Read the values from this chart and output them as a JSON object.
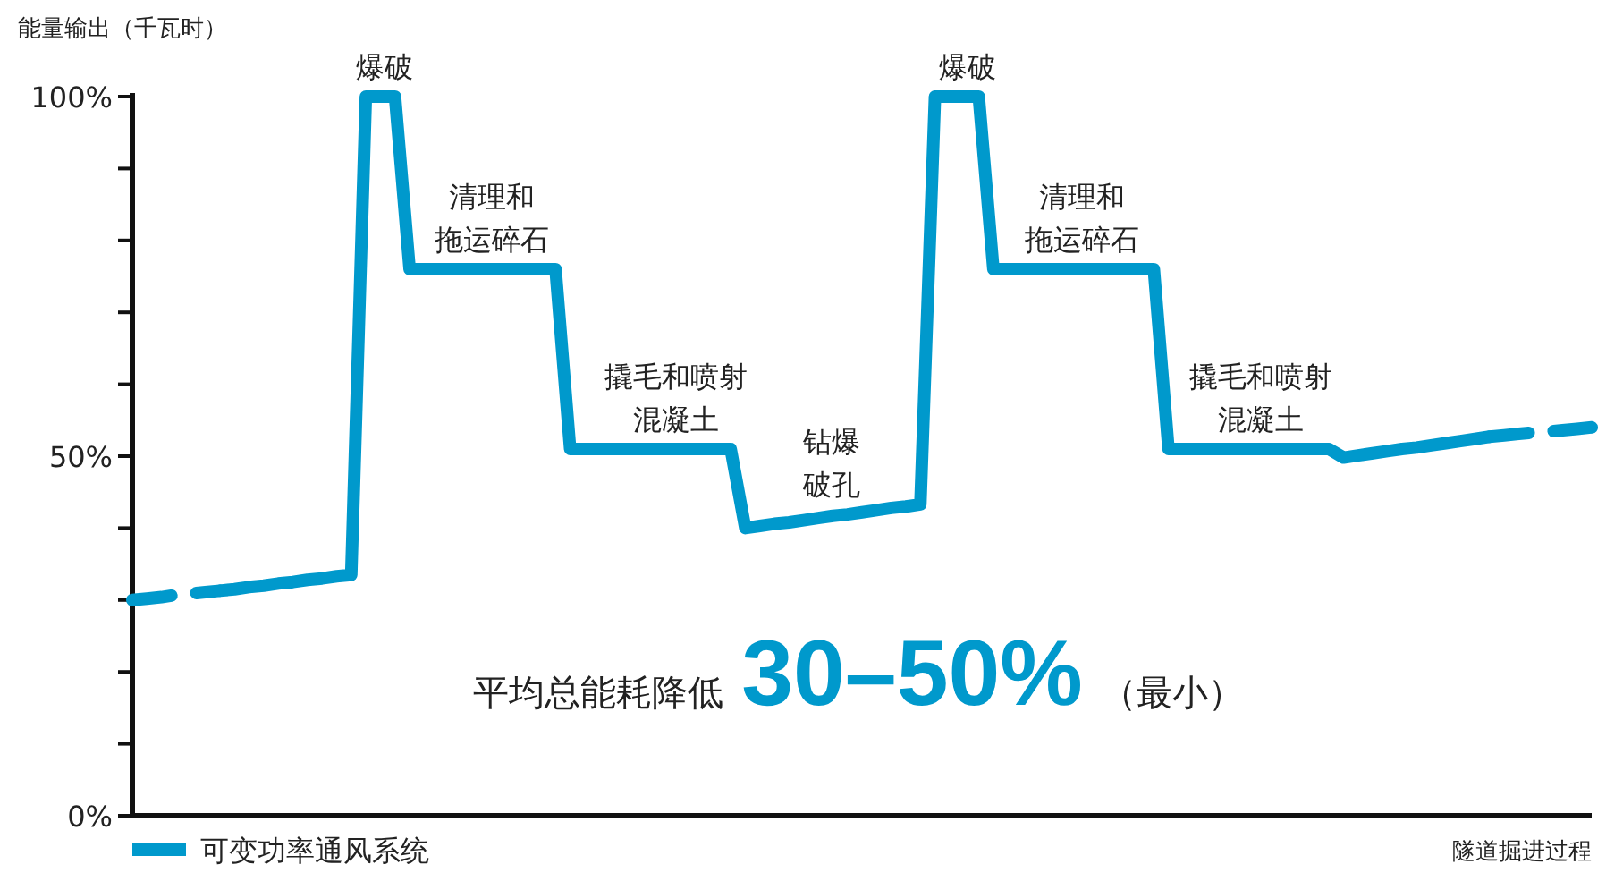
{
  "chart_data": {
    "type": "line",
    "ylabel": "能量输出（千瓦时）",
    "xlabel": "隧道掘进过程",
    "categories": [
      null,
      null,
      null,
      null,
      null,
      null,
      null,
      null,
      null,
      null,
      null,
      null,
      null,
      null,
      null,
      null,
      null,
      null,
      null,
      null,
      null,
      null,
      null,
      null,
      null,
      null,
      null,
      null,
      null,
      null,
      null,
      null,
      null,
      null,
      null,
      null,
      null,
      null,
      null,
      null,
      null,
      null,
      null,
      null,
      null,
      null,
      null,
      null,
      null,
      null,
      null,
      null,
      null,
      null,
      null,
      null,
      null,
      null,
      null,
      null,
      null,
      null,
      null,
      null,
      null,
      null,
      null,
      null,
      null,
      null,
      null,
      null,
      null,
      null,
      null,
      null,
      null,
      null,
      null,
      null,
      null,
      null,
      null,
      null,
      null,
      null,
      null,
      null,
      null,
      null,
      null,
      null,
      null,
      null,
      null,
      null,
      null,
      null,
      null,
      null,
      null
    ],
    "ylim": [
      0,
      100
    ],
    "yticks": [
      {
        "value": 0,
        "label": "0%"
      },
      {
        "value": 10,
        "label": null
      },
      {
        "value": 20,
        "label": null
      },
      {
        "value": 30,
        "label": null
      },
      {
        "value": 40,
        "label": null
      },
      {
        "value": 50,
        "label": "50%"
      },
      {
        "value": 60,
        "label": null
      },
      {
        "value": 70,
        "label": null
      },
      {
        "value": 80,
        "label": null
      },
      {
        "value": 90,
        "label": null
      },
      {
        "value": 100,
        "label": "100%"
      }
    ],
    "tick_labels": "y",
    "grid": false,
    "marker": "none",
    "legend": "bottom left",
    "series": [
      {
        "color": "#0099cc",
        "line_style": "dashed",
        "values": [
          30,
          30.2,
          30.4,
          30.7,
          30.9,
          31.1,
          31.3,
          null,
          null,
          null,
          null,
          null,
          null,
          null,
          null,
          null,
          null,
          null,
          null,
          null,
          null,
          null,
          null,
          null,
          null,
          null,
          null,
          null,
          null,
          null,
          null,
          null,
          null,
          null,
          null,
          null,
          null,
          null,
          null,
          null,
          null,
          null,
          null,
          null,
          null,
          null,
          null,
          null,
          null,
          null,
          null,
          null,
          null,
          null,
          null,
          null,
          null,
          null,
          null,
          null,
          null,
          null,
          null,
          null,
          null,
          null,
          null,
          null,
          null,
          null,
          null,
          null,
          null,
          null,
          null,
          null,
          null,
          null,
          null,
          null,
          null,
          null,
          null,
          null,
          null,
          null,
          null,
          null,
          null,
          null,
          null,
          null,
          null,
          null,
          null,
          null,
          null,
          null,
          null,
          null,
          null
        ]
      },
      {
        "name": "可变功率通风系统",
        "color": "#0099cc",
        "line_style": "solid",
        "values": [
          null,
          null,
          null,
          null,
          null,
          null,
          31.3,
          31.5,
          31.8,
          32.0,
          32.3,
          32.5,
          32.8,
          33.0,
          33.3,
          33.5,
          100,
          100,
          100,
          76,
          76,
          76,
          76,
          76,
          76,
          76,
          76,
          76,
          76,
          76,
          51,
          51,
          51,
          51,
          51,
          51,
          51,
          51,
          51,
          51,
          51,
          51,
          40,
          40.3,
          40.6,
          40.8,
          41.1,
          41.4,
          41.7,
          41.9,
          42.2,
          42.5,
          42.8,
          43.0,
          43.3,
          100,
          100,
          100,
          100,
          76,
          76,
          76,
          76,
          76,
          76,
          76,
          76,
          76,
          76,
          76,
          76,
          51,
          51,
          51,
          51,
          51,
          51,
          51,
          51,
          51,
          51,
          51,
          51,
          49.8,
          50.1,
          50.4,
          50.7,
          51.0,
          51.2,
          51.5,
          51.8,
          52.1,
          52.4,
          52.7,
          null,
          null,
          null,
          null,
          null,
          null,
          null
        ]
      },
      {
        "color": "#0099cc",
        "line_style": "dashed",
        "values": [
          null,
          null,
          null,
          null,
          null,
          null,
          null,
          null,
          null,
          null,
          null,
          null,
          null,
          null,
          null,
          null,
          null,
          null,
          null,
          null,
          null,
          null,
          null,
          null,
          null,
          null,
          null,
          null,
          null,
          null,
          null,
          null,
          null,
          null,
          null,
          null,
          null,
          null,
          null,
          null,
          null,
          null,
          null,
          null,
          null,
          null,
          null,
          null,
          null,
          null,
          null,
          null,
          null,
          null,
          null,
          null,
          null,
          null,
          null,
          null,
          null,
          null,
          null,
          null,
          null,
          null,
          null,
          null,
          null,
          null,
          null,
          null,
          null,
          null,
          null,
          null,
          null,
          null,
          null,
          null,
          null,
          null,
          null,
          null,
          null,
          null,
          null,
          null,
          null,
          null,
          null,
          null,
          null,
          52.7,
          52.9,
          53.1,
          53.3,
          53.4,
          53.6,
          53.8,
          54.0
        ]
      }
    ],
    "annotations": [
      {
        "text": "爆破",
        "y": 100
      },
      {
        "text": "清理和拖运碎石",
        "y": 76
      },
      {
        "text": "撬毛和喷射混凝土",
        "y": 51
      },
      {
        "text": "钻爆破孔",
        "y": 41.9
      },
      {
        "text": "爆破",
        "y": 100
      },
      {
        "text": "清理和拖运碎石",
        "y": 76
      },
      {
        "text": "撬毛和喷射混凝土",
        "y": 51
      },
      "平均总能耗降低**30–50%**（最小）"
    ]
  }
}
